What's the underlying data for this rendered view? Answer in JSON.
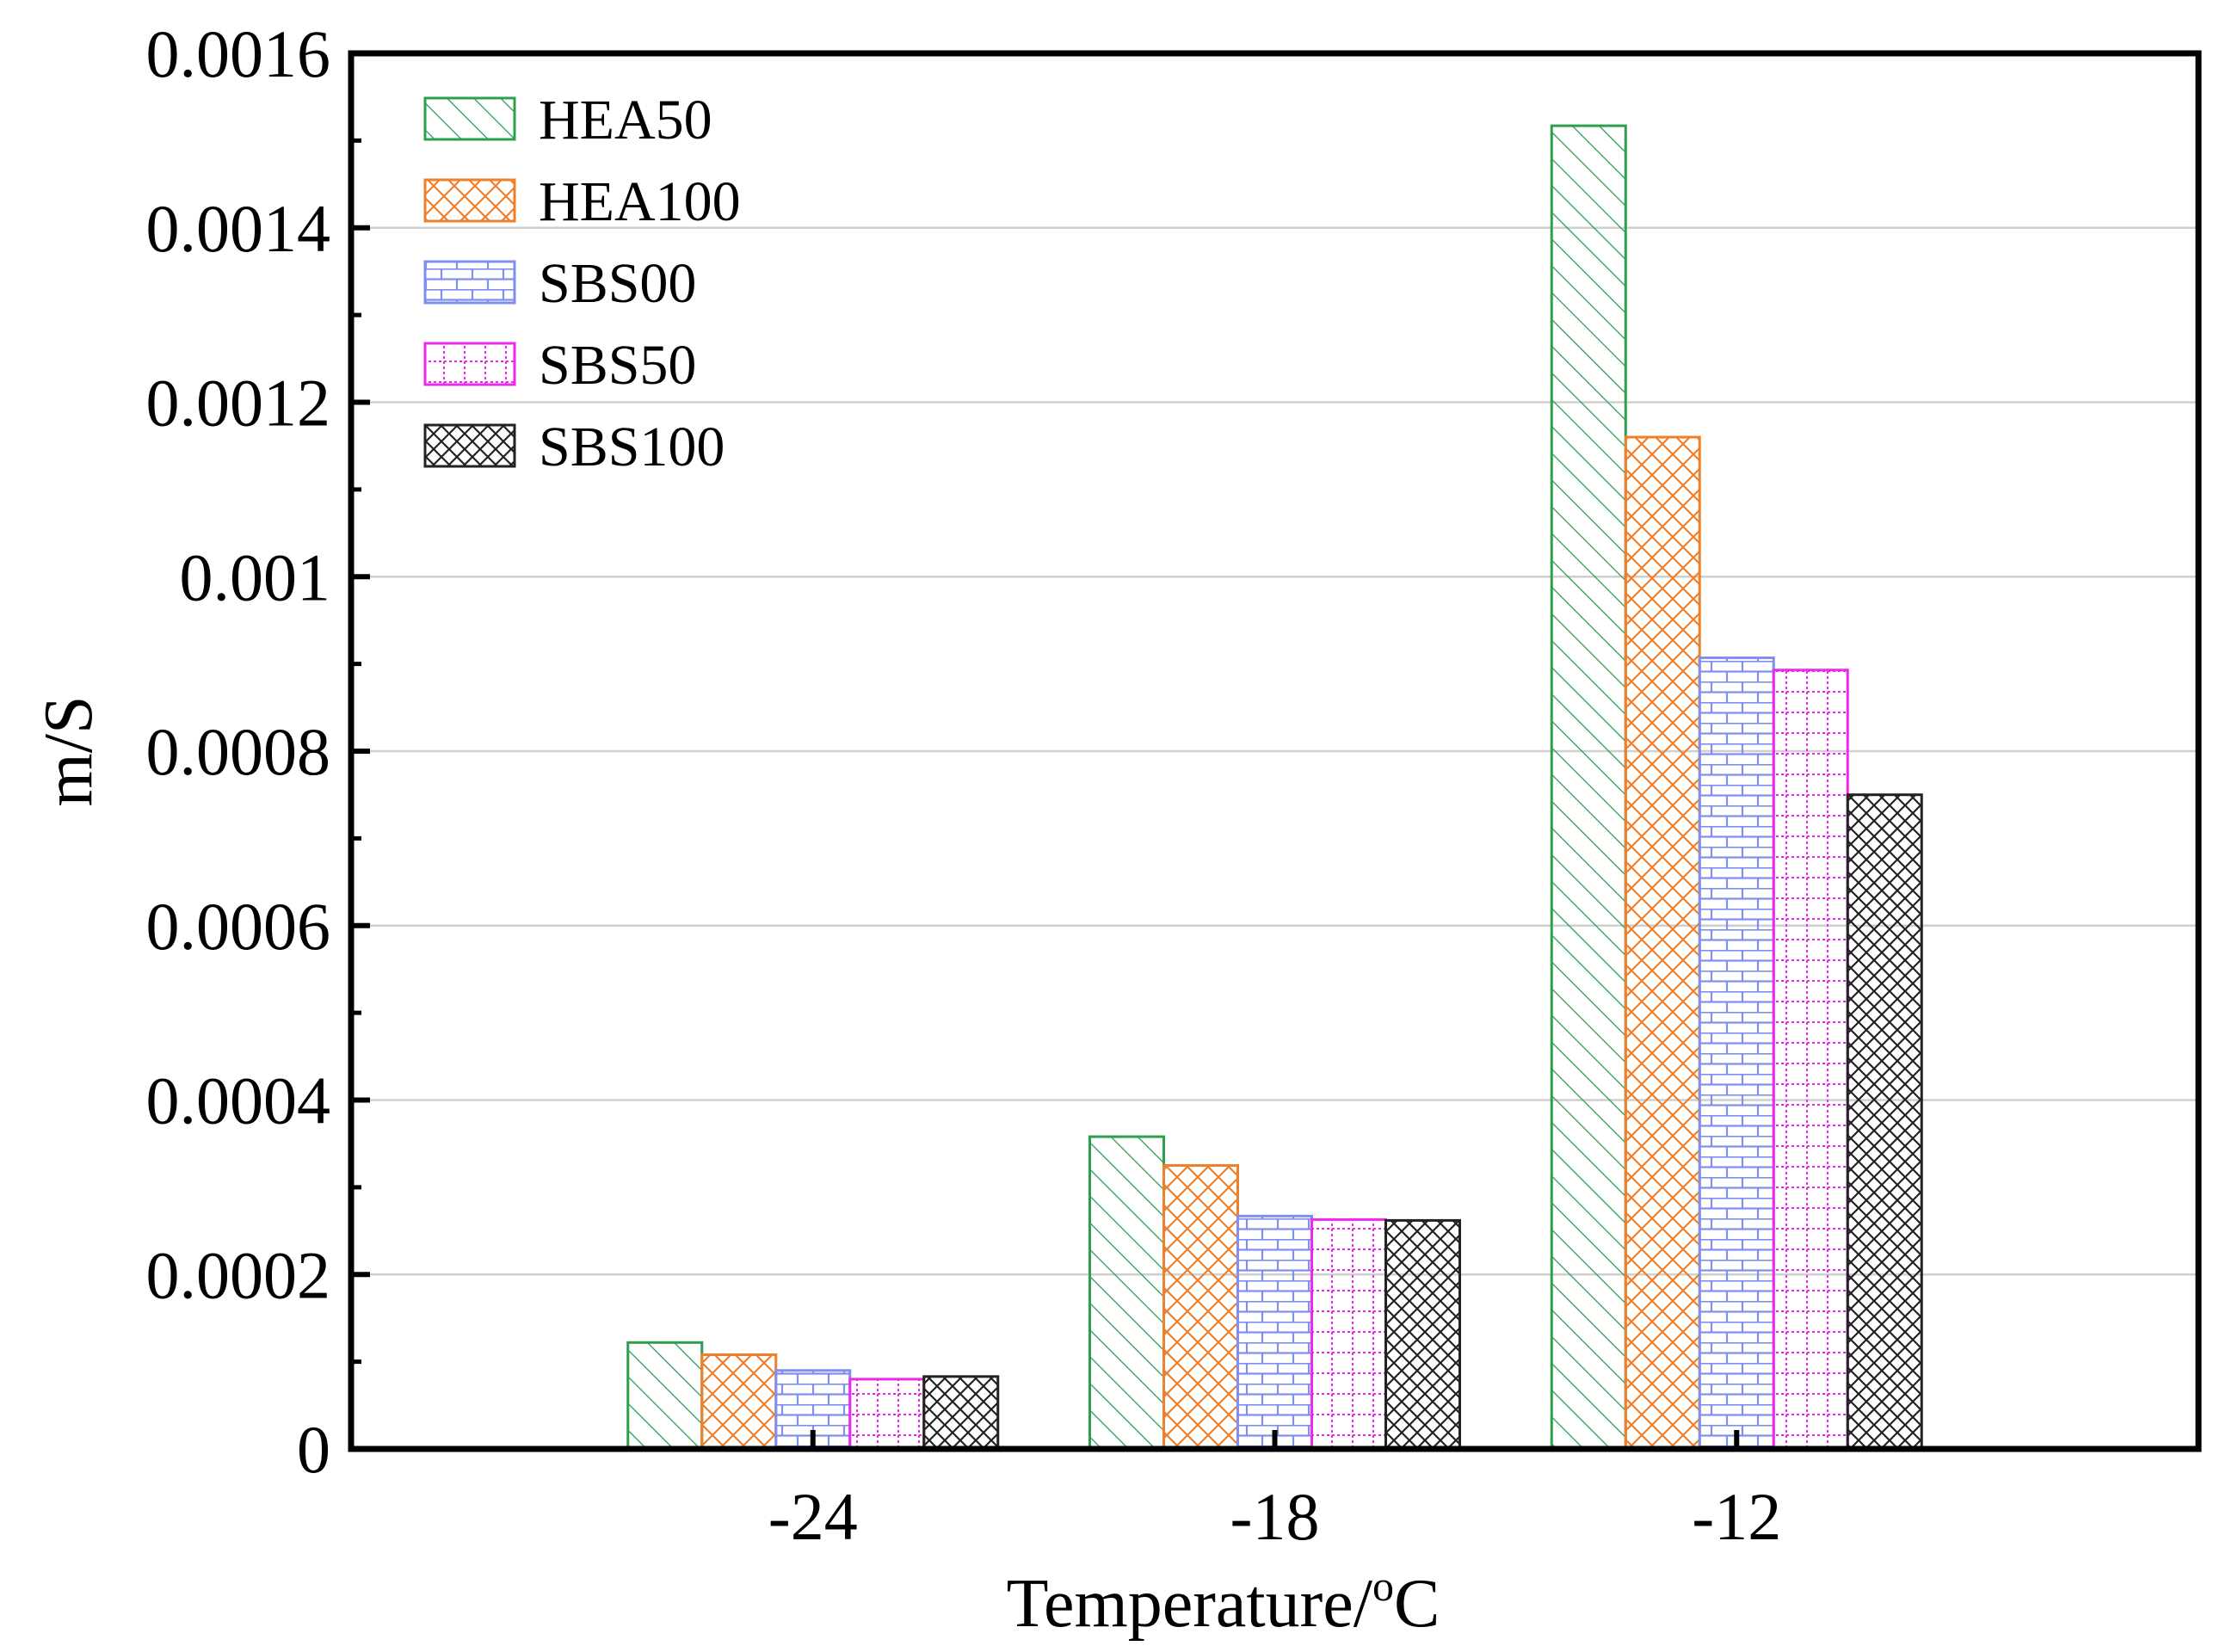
{
  "chart_data": {
    "type": "bar",
    "title": "",
    "xlabel": "Temperature/",
    "xlabel_superscript": "o",
    "xlabel_suffix": "C",
    "ylabel": "m/S",
    "ylim": [
      0,
      0.0016
    ],
    "y_ticks": [
      "0",
      "0.0002",
      "0.0004",
      "0.0006",
      "0.0008",
      "0.001",
      "0.0012",
      "0.0014",
      "0.0016"
    ],
    "y_tick_values": [
      0,
      0.0002,
      0.0004,
      0.0006,
      0.0008,
      0.001,
      0.0012,
      0.0014,
      0.0016
    ],
    "categories": [
      "-24",
      "-18",
      "-12"
    ],
    "grid": true,
    "legend_position": "top-left",
    "series": [
      {
        "name": "HEA50",
        "color": "#2e9e4f",
        "pattern": "diagonal",
        "values": [
          0.000122,
          0.000358,
          0.001517
        ]
      },
      {
        "name": "HEA100",
        "color": "#f07f2a",
        "pattern": "crosshatch",
        "values": [
          0.000108,
          0.000325,
          0.00116
        ]
      },
      {
        "name": "SBS00",
        "color": "#7f8ff0",
        "pattern": "brick",
        "values": [
          9e-05,
          0.000267,
          0.000907
        ]
      },
      {
        "name": "SBS50",
        "color": "#ee28ee",
        "pattern": "dotted-grid",
        "values": [
          8e-05,
          0.000263,
          0.000893
        ]
      },
      {
        "name": "SBS100",
        "color": "#222222",
        "pattern": "crosshatch-dense",
        "values": [
          8.3e-05,
          0.000262,
          0.00075
        ]
      }
    ]
  }
}
